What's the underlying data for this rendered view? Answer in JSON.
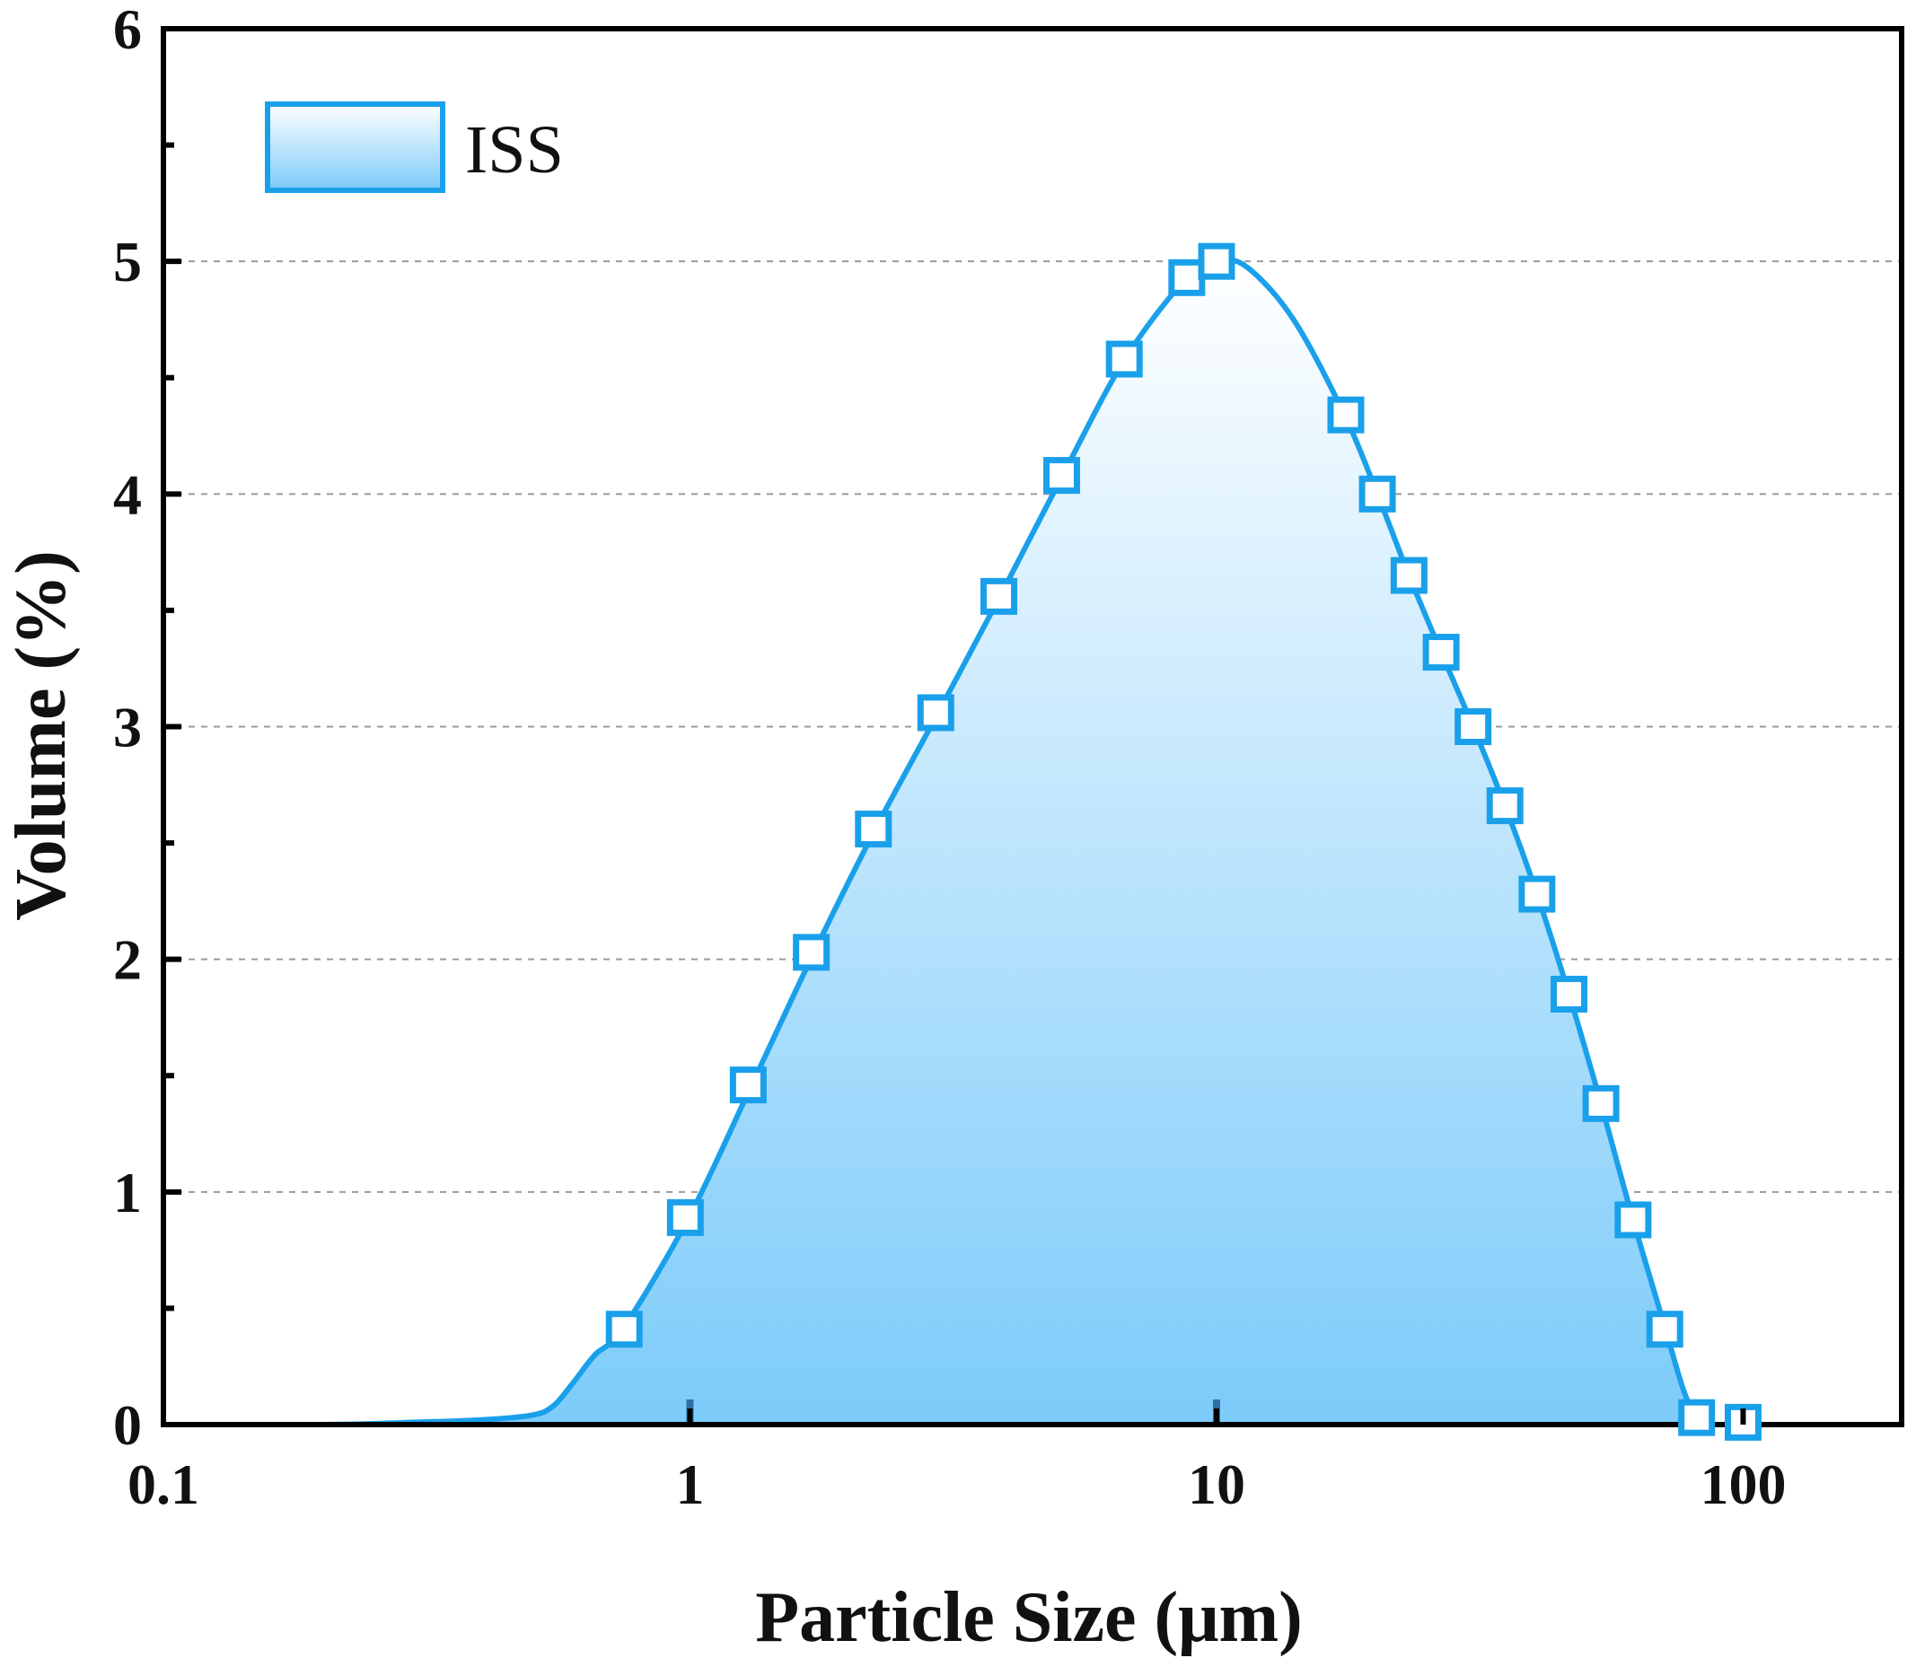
{
  "chart_data": {
    "type": "area",
    "title": "",
    "xlabel": "Particle Size (μm)",
    "ylabel": "Volume (%)",
    "xscale": "log",
    "xlim": [
      0.1,
      200
    ],
    "ylim": [
      0,
      6
    ],
    "xticks": [
      0.1,
      1,
      10,
      100
    ],
    "xtick_labels": [
      "0.1",
      "1",
      "10",
      "100"
    ],
    "yticks": [
      0,
      1,
      2,
      3,
      4,
      5,
      6
    ],
    "ytick_labels": [
      "0",
      "1",
      "2",
      "3",
      "4",
      "5",
      "6"
    ],
    "grid": "horizontal dashed",
    "legend_position": "top-left",
    "series": [
      {
        "name": "ISS",
        "color": "#1aa0ea",
        "fill_top": "#ffffff",
        "fill_bottom": "#7ccbfa",
        "marker": "hollow-square",
        "curve": [
          {
            "x": 0.1,
            "y": 0.0
          },
          {
            "x": 0.2,
            "y": 0.0
          },
          {
            "x": 0.3,
            "y": 0.01
          },
          {
            "x": 0.4,
            "y": 0.02
          },
          {
            "x": 0.5,
            "y": 0.04
          },
          {
            "x": 0.55,
            "y": 0.08
          },
          {
            "x": 0.6,
            "y": 0.18
          },
          {
            "x": 0.66,
            "y": 0.3
          },
          {
            "x": 0.75,
            "y": 0.42
          },
          {
            "x": 1.0,
            "y": 0.9
          },
          {
            "x": 1.31,
            "y": 1.46
          },
          {
            "x": 1.72,
            "y": 2.03
          },
          {
            "x": 2.25,
            "y": 2.56
          },
          {
            "x": 2.96,
            "y": 3.06
          },
          {
            "x": 3.88,
            "y": 3.56
          },
          {
            "x": 5.1,
            "y": 4.08
          },
          {
            "x": 6.7,
            "y": 4.58
          },
          {
            "x": 8.8,
            "y": 4.93
          },
          {
            "x": 10.2,
            "y": 5.0
          },
          {
            "x": 11.5,
            "y": 4.97
          },
          {
            "x": 14.0,
            "y": 4.75
          },
          {
            "x": 17.5,
            "y": 4.34
          },
          {
            "x": 20.2,
            "y": 4.0
          },
          {
            "x": 23.2,
            "y": 3.65
          },
          {
            "x": 26.7,
            "y": 3.32
          },
          {
            "x": 30.7,
            "y": 3.0
          },
          {
            "x": 35.3,
            "y": 2.66
          },
          {
            "x": 40.6,
            "y": 2.28
          },
          {
            "x": 46.7,
            "y": 1.85
          },
          {
            "x": 53.7,
            "y": 1.38
          },
          {
            "x": 61.8,
            "y": 0.88
          },
          {
            "x": 71.0,
            "y": 0.42
          },
          {
            "x": 77.0,
            "y": 0.15
          },
          {
            "x": 82.0,
            "y": 0.02
          },
          {
            "x": 86.0,
            "y": 0.0
          },
          {
            "x": 150.0,
            "y": 0.0
          }
        ],
        "points": [
          {
            "x": 0.75,
            "y": 0.41
          },
          {
            "x": 0.98,
            "y": 0.89
          },
          {
            "x": 1.29,
            "y": 1.46
          },
          {
            "x": 1.7,
            "y": 2.03
          },
          {
            "x": 2.23,
            "y": 2.56
          },
          {
            "x": 2.93,
            "y": 3.06
          },
          {
            "x": 3.86,
            "y": 3.56
          },
          {
            "x": 5.08,
            "y": 4.08
          },
          {
            "x": 6.68,
            "y": 4.58
          },
          {
            "x": 8.78,
            "y": 4.93
          },
          {
            "x": 10.0,
            "y": 5.0
          },
          {
            "x": 17.6,
            "y": 4.34
          },
          {
            "x": 20.2,
            "y": 4.0
          },
          {
            "x": 23.2,
            "y": 3.65
          },
          {
            "x": 26.7,
            "y": 3.32
          },
          {
            "x": 30.7,
            "y": 3.0
          },
          {
            "x": 35.3,
            "y": 2.66
          },
          {
            "x": 40.6,
            "y": 2.28
          },
          {
            "x": 46.7,
            "y": 1.85
          },
          {
            "x": 53.7,
            "y": 1.38
          },
          {
            "x": 61.8,
            "y": 0.88
          },
          {
            "x": 71.0,
            "y": 0.41
          },
          {
            "x": 81.6,
            "y": 0.03
          },
          {
            "x": 100.0,
            "y": 0.01
          }
        ]
      }
    ]
  }
}
